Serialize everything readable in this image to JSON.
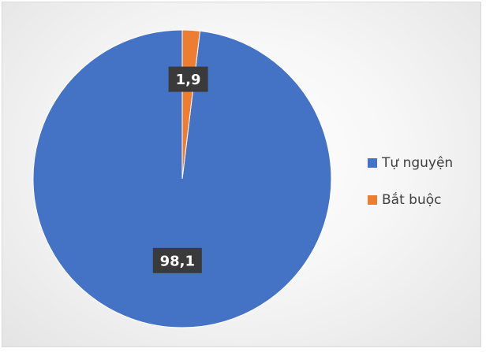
{
  "chart_data": {
    "type": "pie",
    "title": "",
    "categories": [
      "Tự nguyện",
      "Bắt buộc"
    ],
    "values": [
      98.1,
      1.9
    ],
    "data_labels": [
      "98,1",
      "1,9"
    ],
    "colors": [
      "#4472C4",
      "#ED7D31"
    ],
    "legend_position": "right",
    "start_angle_deg": 0,
    "direction": "counterclockwise"
  },
  "legend": {
    "items": [
      {
        "label": "Tự nguyện",
        "color": "#4472C4"
      },
      {
        "label": "Bắt buộc",
        "color": "#ED7D31"
      }
    ]
  }
}
